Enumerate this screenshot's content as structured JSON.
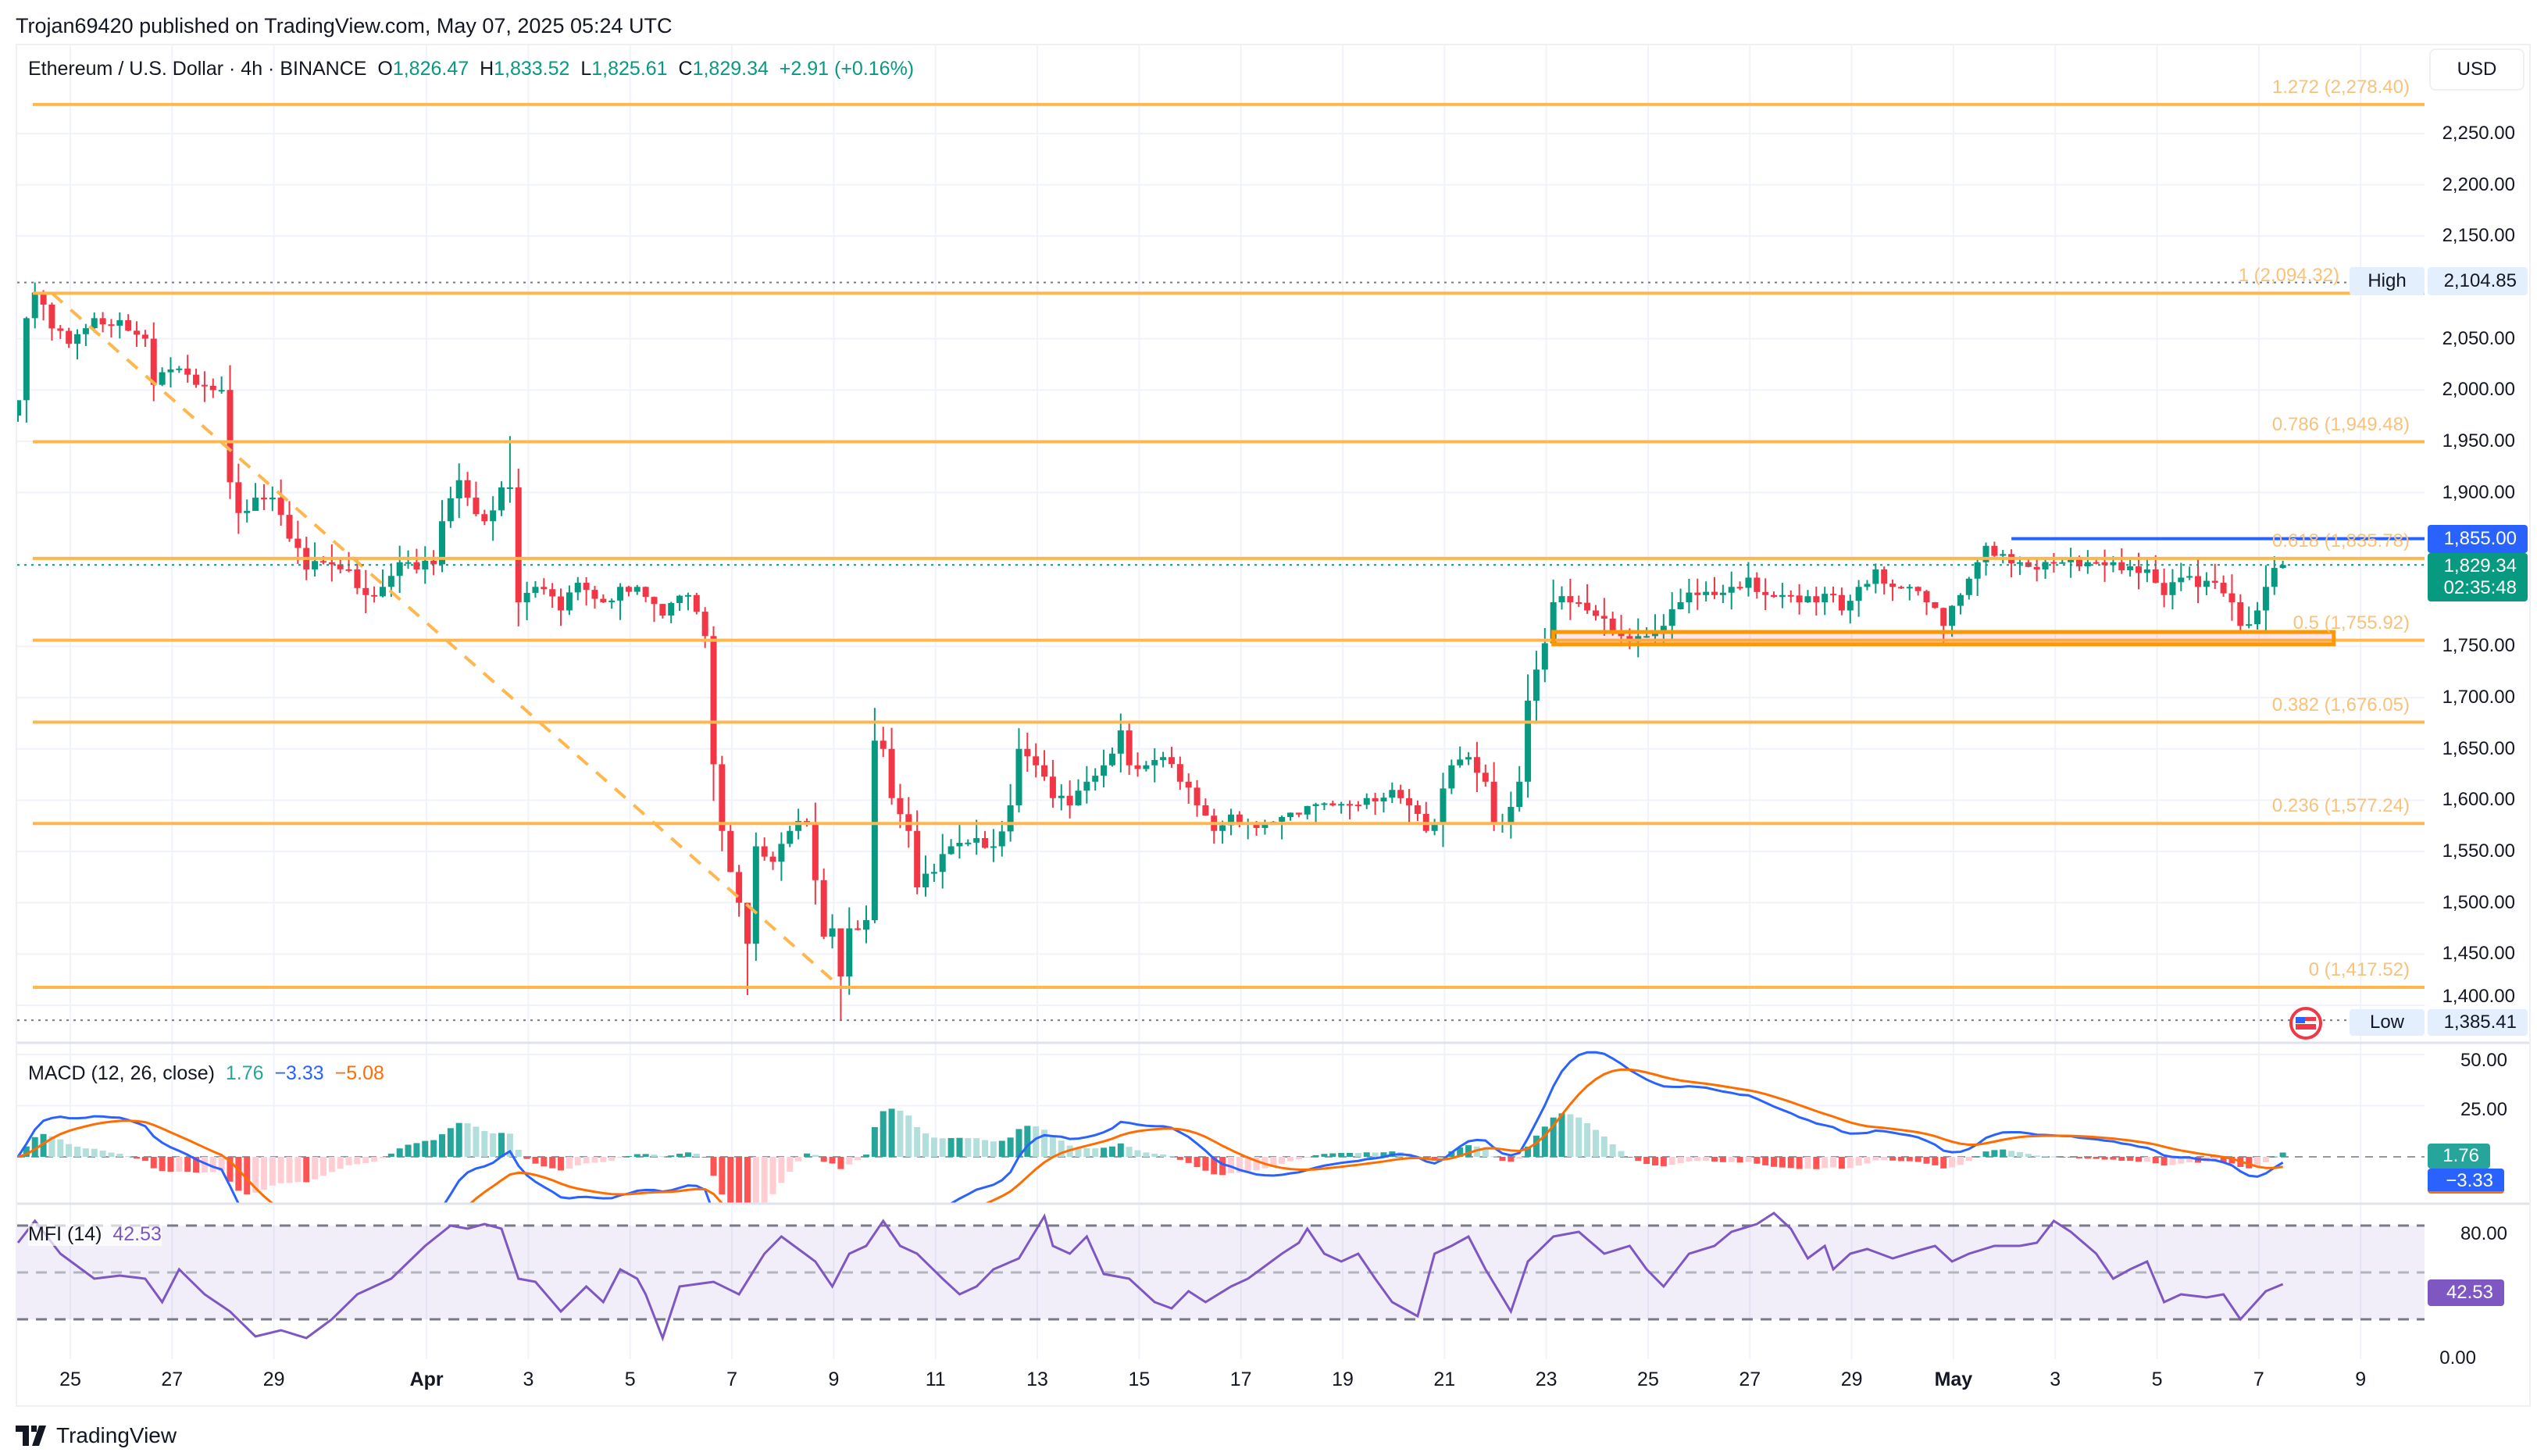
{
  "header": {
    "publisher": "Trojan69420 published on TradingView.com, May 07, 2025 05:24 UTC"
  },
  "legend": {
    "symbol": "Ethereum / U.S. Dollar · 4h · BINANCE",
    "o_label": "O",
    "o": "1,826.47",
    "h_label": "H",
    "h": "1,833.52",
    "l_label": "L",
    "l": "1,825.61",
    "c_label": "C",
    "c": "1,829.34",
    "change": "+2.91 (+0.16%)"
  },
  "price_axis": {
    "currency": "USD",
    "high_label": "High",
    "high_value": "2,104.85",
    "low_label": "Low",
    "low_value": "1,385.41",
    "alert_value": "1,855.00",
    "last_price": "1,829.34",
    "countdown": "02:35:48"
  },
  "macd": {
    "title": "MACD (12, 26, close)",
    "hist": "1.76",
    "macd": "−3.33",
    "signal": "−5.08",
    "tag_hist": "1.76",
    "tag_macd": "−3.33",
    "axis": [
      "50.00",
      "25.00"
    ]
  },
  "mfi": {
    "title": "MFI (14)",
    "value": "42.53",
    "tag": "42.53",
    "axis": [
      "80.00",
      "0.00"
    ]
  },
  "logo": {
    "text": "TradingView"
  },
  "colors": {
    "up": "#089981",
    "down": "#f23645",
    "fib": "#ffb74d",
    "alert": "#2962ff",
    "zone": "#ff9800",
    "macd": "#2962ff",
    "signal": "#ff6d00",
    "mfi": "#7e57c2"
  },
  "chart_data": {
    "type": "candlestick",
    "title": "Ethereum / U.S. Dollar · 4h · BINANCE",
    "interval_hours": 4,
    "first_candle": "2025-03-24T00:00Z",
    "ylim": [
      1385,
      2290
    ],
    "y_ticks": [
      {
        "label": "2,250.00",
        "value": 2250
      },
      {
        "label": "2,200.00",
        "value": 2200
      },
      {
        "label": "2,150.00",
        "value": 2150
      },
      {
        "label": "2,050.00",
        "value": 2050
      },
      {
        "label": "2,000.00",
        "value": 2000
      },
      {
        "label": "1,950.00",
        "value": 1950
      },
      {
        "label": "1,900.00",
        "value": 1900
      },
      {
        "label": "1,750.00",
        "value": 1750
      },
      {
        "label": "1,700.00",
        "value": 1700
      },
      {
        "label": "1,650.00",
        "value": 1650
      },
      {
        "label": "1,600.00",
        "value": 1600
      },
      {
        "label": "1,550.00",
        "value": 1550
      },
      {
        "label": "1,500.00",
        "value": 1500
      },
      {
        "label": "1,450.00",
        "value": 1450
      },
      {
        "label": "1,400.00",
        "value": 1400
      }
    ],
    "x_ticks": [
      {
        "label": "25",
        "day": 0
      },
      {
        "label": "27",
        "day": 2
      },
      {
        "label": "29",
        "day": 4
      },
      {
        "label": "Apr",
        "day": 7,
        "bold": true
      },
      {
        "label": "3",
        "day": 9
      },
      {
        "label": "5",
        "day": 11
      },
      {
        "label": "7",
        "day": 13
      },
      {
        "label": "9",
        "day": 15
      },
      {
        "label": "11",
        "day": 17
      },
      {
        "label": "13",
        "day": 19
      },
      {
        "label": "15",
        "day": 21
      },
      {
        "label": "17",
        "day": 23
      },
      {
        "label": "19",
        "day": 25
      },
      {
        "label": "21",
        "day": 27
      },
      {
        "label": "23",
        "day": 29
      },
      {
        "label": "25",
        "day": 31
      },
      {
        "label": "27",
        "day": 33
      },
      {
        "label": "29",
        "day": 35
      },
      {
        "label": "May",
        "day": 37,
        "bold": true
      },
      {
        "label": "3",
        "day": 39
      },
      {
        "label": "5",
        "day": 41
      },
      {
        "label": "7",
        "day": 43
      },
      {
        "label": "9",
        "day": 45
      }
    ],
    "close_path": [
      [
        0,
        1990
      ],
      [
        1,
        2070
      ],
      [
        2,
        2095
      ],
      [
        4,
        2060
      ],
      [
        6,
        2045
      ],
      [
        9,
        2070
      ],
      [
        12,
        2068
      ],
      [
        15,
        2050
      ],
      [
        16,
        2005
      ],
      [
        18,
        2020
      ],
      [
        21,
        2005
      ],
      [
        24,
        2000
      ],
      [
        25,
        1910
      ],
      [
        26,
        1880
      ],
      [
        28,
        1895
      ],
      [
        30,
        1895
      ],
      [
        32,
        1855
      ],
      [
        34,
        1825
      ],
      [
        36,
        1832
      ],
      [
        39,
        1825
      ],
      [
        41,
        1800
      ],
      [
        43,
        1808
      ],
      [
        45,
        1832
      ],
      [
        47,
        1825
      ],
      [
        49,
        1830
      ],
      [
        50,
        1872
      ],
      [
        52,
        1912
      ],
      [
        53,
        1895
      ],
      [
        55,
        1872
      ],
      [
        57,
        1905
      ],
      [
        58,
        1905
      ],
      [
        59,
        1793
      ],
      [
        61,
        1808
      ],
      [
        64,
        1785
      ],
      [
        66,
        1812
      ],
      [
        69,
        1793
      ],
      [
        71,
        1808
      ],
      [
        73,
        1808
      ],
      [
        76,
        1780
      ],
      [
        79,
        1800
      ],
      [
        81,
        1760
      ],
      [
        82,
        1635
      ],
      [
        83,
        1570
      ],
      [
        85,
        1500
      ],
      [
        86,
        1460
      ],
      [
        87,
        1555
      ],
      [
        89,
        1540
      ],
      [
        91,
        1570
      ],
      [
        93,
        1578
      ],
      [
        94,
        1522
      ],
      [
        95,
        1467
      ],
      [
        96,
        1475
      ],
      [
        97,
        1428
      ],
      [
        98,
        1475
      ],
      [
        100,
        1483
      ],
      [
        101,
        1658
      ],
      [
        102,
        1650
      ],
      [
        103,
        1602
      ],
      [
        105,
        1570
      ],
      [
        106,
        1515
      ],
      [
        108,
        1530
      ],
      [
        110,
        1555
      ],
      [
        113,
        1563
      ],
      [
        115,
        1555
      ],
      [
        117,
        1595
      ],
      [
        118,
        1650
      ],
      [
        120,
        1634
      ],
      [
        122,
        1602
      ],
      [
        124,
        1595
      ],
      [
        126,
        1618
      ],
      [
        128,
        1634
      ],
      [
        130,
        1668
      ],
      [
        131,
        1634
      ],
      [
        133,
        1634
      ],
      [
        135,
        1642
      ],
      [
        137,
        1618
      ],
      [
        139,
        1595
      ],
      [
        141,
        1570
      ],
      [
        143,
        1586
      ],
      [
        145,
        1578
      ],
      [
        147,
        1578
      ],
      [
        151,
        1586
      ],
      [
        155,
        1595
      ],
      [
        159,
        1602
      ],
      [
        162,
        1610
      ],
      [
        164,
        1595
      ],
      [
        166,
        1570
      ],
      [
        167,
        1578
      ],
      [
        169,
        1634
      ],
      [
        171,
        1642
      ],
      [
        173,
        1618
      ],
      [
        174,
        1578
      ],
      [
        175,
        1578
      ],
      [
        177,
        1618
      ],
      [
        178,
        1697
      ],
      [
        180,
        1753
      ],
      [
        181,
        1793
      ],
      [
        183,
        1793
      ],
      [
        185,
        1785
      ],
      [
        187,
        1777
      ],
      [
        189,
        1760
      ],
      [
        191,
        1760
      ],
      [
        192,
        1760
      ],
      [
        194,
        1770
      ],
      [
        196,
        1793
      ],
      [
        198,
        1800
      ],
      [
        200,
        1800
      ],
      [
        202,
        1808
      ],
      [
        204,
        1817
      ],
      [
        206,
        1800
      ],
      [
        208,
        1800
      ],
      [
        210,
        1793
      ],
      [
        212,
        1793
      ],
      [
        214,
        1800
      ],
      [
        215,
        1785
      ],
      [
        217,
        1808
      ],
      [
        219,
        1825
      ],
      [
        221,
        1808
      ],
      [
        223,
        1808
      ],
      [
        225,
        1793
      ],
      [
        227,
        1770
      ],
      [
        229,
        1800
      ],
      [
        231,
        1832
      ],
      [
        232,
        1848
      ],
      [
        234,
        1840
      ],
      [
        236,
        1832
      ],
      [
        238,
        1825
      ],
      [
        240,
        1832
      ],
      [
        241,
        1832
      ],
      [
        243,
        1828
      ],
      [
        245,
        1832
      ],
      [
        247,
        1832
      ],
      [
        249,
        1828
      ],
      [
        251,
        1825
      ],
      [
        253,
        1800
      ],
      [
        255,
        1817
      ],
      [
        257,
        1808
      ],
      [
        259,
        1812
      ],
      [
        261,
        1793
      ],
      [
        262,
        1770
      ],
      [
        264,
        1785
      ],
      [
        265,
        1808
      ],
      [
        266,
        1826.47
      ],
      [
        267,
        1829.34
      ]
    ],
    "wick_overrides": [
      [
        2,
        2104.85,
        2060
      ],
      [
        58,
        1955,
        1890
      ],
      [
        86,
        1500,
        1410
      ],
      [
        97,
        1445,
        1385.41
      ],
      [
        101,
        1690,
        1480
      ],
      [
        267,
        1833.52,
        1825.61
      ]
    ],
    "last_candle": {
      "open": 1826.47,
      "high": 1833.52,
      "low": 1825.61,
      "close": 1829.34
    },
    "fib_levels": [
      {
        "label": "1.272 (2,278.40)",
        "value": 2278.4
      },
      {
        "label": "1 (2,094.32)",
        "value": 2094.32
      },
      {
        "label": "0.786 (1,949.48)",
        "value": 1949.48
      },
      {
        "label": "0.618 (1,835.78)",
        "value": 1835.78
      },
      {
        "label": "0.5 (1,755.92)",
        "value": 1755.92
      },
      {
        "label": "0.382 (1,676.05)",
        "value": 1676.05
      },
      {
        "label": "0.236 (1,577.24)",
        "value": 1577.24
      },
      {
        "label": "0 (1,417.52)",
        "value": 1417.52
      }
    ],
    "fib_trend": {
      "from": [
        4,
        2094.32
      ],
      "to": [
        97,
        1417.52
      ]
    },
    "alert_line": {
      "value": 1855.0,
      "from_index": 235
    },
    "support_zone": {
      "top": 1764,
      "bottom": 1752,
      "from_index": 181,
      "to_index": 273
    },
    "high": 2104.85,
    "low": 1385.41,
    "last": 1829.34,
    "macd_params": {
      "fast": 12,
      "slow": 26,
      "signal": 9
    },
    "macd_ylim": [
      -23,
      56
    ],
    "mfi_ylim": [
      -5,
      95
    ],
    "mfi_bands": [
      80,
      50,
      20
    ],
    "mfi_path": [
      [
        0,
        69
      ],
      [
        2,
        83
      ],
      [
        5,
        62
      ],
      [
        9,
        46
      ],
      [
        12,
        48
      ],
      [
        15,
        46
      ],
      [
        17,
        31
      ],
      [
        19,
        52
      ],
      [
        22,
        36
      ],
      [
        25,
        25
      ],
      [
        28,
        9
      ],
      [
        31,
        13
      ],
      [
        34,
        8
      ],
      [
        37,
        20
      ],
      [
        40,
        36
      ],
      [
        44,
        46
      ],
      [
        48,
        67
      ],
      [
        51,
        80
      ],
      [
        53,
        78
      ],
      [
        55,
        81
      ],
      [
        57,
        78
      ],
      [
        59,
        46
      ],
      [
        61,
        44
      ],
      [
        64,
        25
      ],
      [
        67,
        41
      ],
      [
        69,
        31
      ],
      [
        71,
        52
      ],
      [
        73,
        46
      ],
      [
        74,
        36
      ],
      [
        76,
        8
      ],
      [
        78,
        41
      ],
      [
        82,
        44
      ],
      [
        85,
        36
      ],
      [
        88,
        62
      ],
      [
        90,
        73
      ],
      [
        94,
        57
      ],
      [
        96,
        41
      ],
      [
        98,
        62
      ],
      [
        100,
        67
      ],
      [
        102,
        83
      ],
      [
        104,
        67
      ],
      [
        106,
        62
      ],
      [
        109,
        46
      ],
      [
        111,
        36
      ],
      [
        113,
        41
      ],
      [
        115,
        52
      ],
      [
        118,
        59
      ],
      [
        121,
        86
      ],
      [
        122,
        67
      ],
      [
        124,
        62
      ],
      [
        126,
        73
      ],
      [
        128,
        49
      ],
      [
        131,
        46
      ],
      [
        134,
        31
      ],
      [
        136,
        27
      ],
      [
        138,
        38
      ],
      [
        140,
        31
      ],
      [
        143,
        41
      ],
      [
        145,
        46
      ],
      [
        147,
        54
      ],
      [
        149,
        62
      ],
      [
        151,
        69
      ],
      [
        152,
        78
      ],
      [
        154,
        62
      ],
      [
        156,
        57
      ],
      [
        158,
        62
      ],
      [
        160,
        46
      ],
      [
        162,
        31
      ],
      [
        165,
        22
      ],
      [
        167,
        62
      ],
      [
        169,
        67
      ],
      [
        171,
        73
      ],
      [
        173,
        52
      ],
      [
        176,
        25
      ],
      [
        178,
        57
      ],
      [
        181,
        73
      ],
      [
        184,
        76
      ],
      [
        187,
        62
      ],
      [
        190,
        67
      ],
      [
        192,
        52
      ],
      [
        194,
        41
      ],
      [
        197,
        62
      ],
      [
        200,
        67
      ],
      [
        202,
        76
      ],
      [
        205,
        81
      ],
      [
        207,
        88
      ],
      [
        209,
        78
      ],
      [
        211,
        59
      ],
      [
        213,
        67
      ],
      [
        214,
        52
      ],
      [
        216,
        62
      ],
      [
        218,
        65
      ],
      [
        221,
        59
      ],
      [
        224,
        64
      ],
      [
        226,
        67
      ],
      [
        228,
        57
      ],
      [
        230,
        62
      ],
      [
        233,
        67
      ],
      [
        236,
        67
      ],
      [
        238,
        69
      ],
      [
        240,
        83
      ],
      [
        242,
        76
      ],
      [
        245,
        62
      ],
      [
        247,
        46
      ],
      [
        249,
        52
      ],
      [
        251,
        57
      ],
      [
        253,
        31
      ],
      [
        255,
        36
      ],
      [
        258,
        34
      ],
      [
        260,
        36
      ],
      [
        262,
        20
      ],
      [
        265,
        38
      ],
      [
        267,
        42.53
      ]
    ]
  }
}
